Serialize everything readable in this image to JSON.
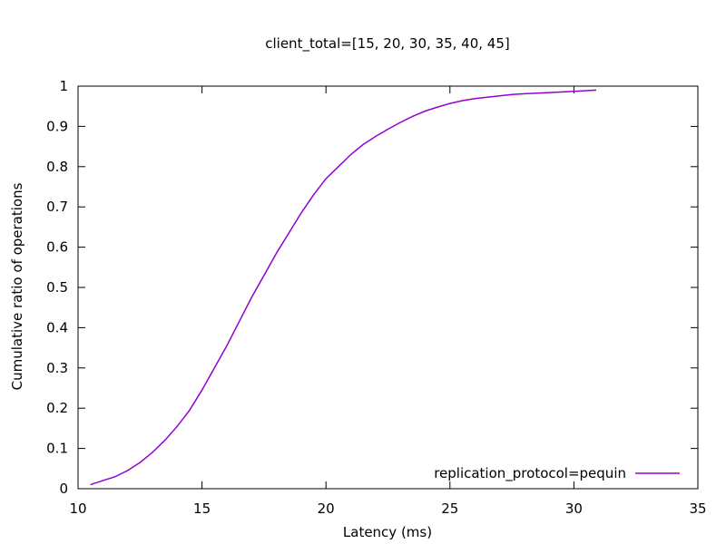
{
  "chart_data": {
    "type": "line",
    "title": "client_total=[15, 20, 30, 35, 40, 45]",
    "xlabel": "Latency (ms)",
    "ylabel": "Cumulative ratio of operations",
    "xlim": [
      10,
      35
    ],
    "ylim": [
      0,
      1
    ],
    "xticks": [
      10,
      15,
      20,
      25,
      30,
      35
    ],
    "yticks": [
      0,
      0.1,
      0.2,
      0.3,
      0.4,
      0.5,
      0.6,
      0.7,
      0.8,
      0.9,
      1
    ],
    "grid": false,
    "legend_position": "bottom-right",
    "series": [
      {
        "name": "replication_protocol=pequin",
        "color": "#9400d3",
        "x": [
          10.5,
          11.0,
          11.5,
          12.0,
          12.5,
          13.0,
          13.5,
          14.0,
          14.5,
          15.0,
          15.5,
          16.0,
          16.5,
          17.0,
          17.5,
          18.0,
          18.5,
          19.0,
          19.5,
          20.0,
          20.5,
          21.0,
          21.5,
          22.0,
          22.5,
          23.0,
          23.5,
          24.0,
          24.5,
          25.0,
          25.5,
          26.0,
          27.0,
          27.5,
          28.0,
          29.0,
          30.0,
          30.9
        ],
        "y": [
          0.01,
          0.02,
          0.03,
          0.045,
          0.065,
          0.09,
          0.12,
          0.155,
          0.195,
          0.245,
          0.3,
          0.355,
          0.415,
          0.475,
          0.53,
          0.585,
          0.635,
          0.685,
          0.73,
          0.77,
          0.8,
          0.83,
          0.855,
          0.875,
          0.893,
          0.91,
          0.925,
          0.938,
          0.948,
          0.957,
          0.964,
          0.969,
          0.976,
          0.979,
          0.981,
          0.984,
          0.987,
          0.99
        ]
      }
    ]
  }
}
